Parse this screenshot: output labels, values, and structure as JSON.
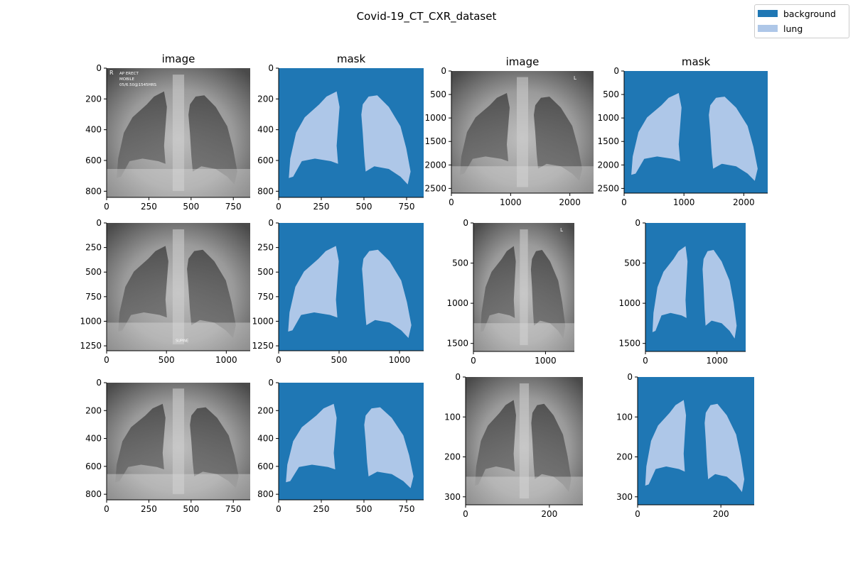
{
  "figure": {
    "title": "Covid-19_CT_CXR_dataset"
  },
  "legend": {
    "items": [
      {
        "label": "background",
        "color": "#1f77b4"
      },
      {
        "label": "lung",
        "color": "#aec7e8"
      }
    ]
  },
  "colors": {
    "background": "#1f77b4",
    "lung": "#aec7e8"
  },
  "panels": [
    {
      "title": "image",
      "kind": "image",
      "xticks": [
        "0",
        "250",
        "500",
        "750"
      ],
      "yticks": [
        "0",
        "200",
        "400",
        "600",
        "800"
      ],
      "overlay": [
        "R",
        "AP ERECT",
        "MOBILE",
        "05/6.50@1545HRS"
      ]
    },
    {
      "title": "mask",
      "kind": "mask",
      "xticks": [
        "0",
        "250",
        "500",
        "750"
      ],
      "yticks": [
        "0",
        "200",
        "400",
        "600",
        "800"
      ]
    },
    {
      "title": "image",
      "kind": "image",
      "xticks": [
        "0",
        "1000",
        "2000"
      ],
      "yticks": [
        "0",
        "500",
        "1000",
        "1500",
        "2000",
        "2500"
      ],
      "overlay": [
        "L"
      ]
    },
    {
      "title": "mask",
      "kind": "mask",
      "xticks": [
        "0",
        "1000",
        "2000"
      ],
      "yticks": [
        "0",
        "500",
        "1000",
        "1500",
        "2000",
        "2500"
      ]
    },
    {
      "title": "",
      "kind": "image",
      "xticks": [
        "0",
        "500",
        "1000"
      ],
      "yticks": [
        "0",
        "250",
        "500",
        "750",
        "1000",
        "1250"
      ],
      "overlay": [
        "SUPINE"
      ]
    },
    {
      "title": "",
      "kind": "mask",
      "xticks": [
        "0",
        "500",
        "1000"
      ],
      "yticks": [
        "0",
        "250",
        "500",
        "750",
        "1000",
        "1250"
      ]
    },
    {
      "title": "",
      "kind": "image",
      "xticks": [
        "0",
        "1000"
      ],
      "yticks": [
        "0",
        "500",
        "1000",
        "1500"
      ],
      "overlay": [
        "L"
      ]
    },
    {
      "title": "",
      "kind": "mask",
      "xticks": [
        "0",
        "1000"
      ],
      "yticks": [
        "0",
        "500",
        "1000",
        "1500"
      ]
    },
    {
      "title": "",
      "kind": "image",
      "xticks": [
        "0",
        "250",
        "500",
        "750"
      ],
      "yticks": [
        "0",
        "200",
        "400",
        "600",
        "800"
      ]
    },
    {
      "title": "",
      "kind": "mask",
      "xticks": [
        "0",
        "250",
        "500",
        "750"
      ],
      "yticks": [
        "0",
        "200",
        "400",
        "600",
        "800"
      ]
    },
    {
      "title": "",
      "kind": "image",
      "xticks": [
        "0",
        "200"
      ],
      "yticks": [
        "0",
        "100",
        "200",
        "300"
      ]
    },
    {
      "title": "",
      "kind": "mask",
      "xticks": [
        "0",
        "200"
      ],
      "yticks": [
        "0",
        "100",
        "200",
        "300"
      ]
    }
  ]
}
